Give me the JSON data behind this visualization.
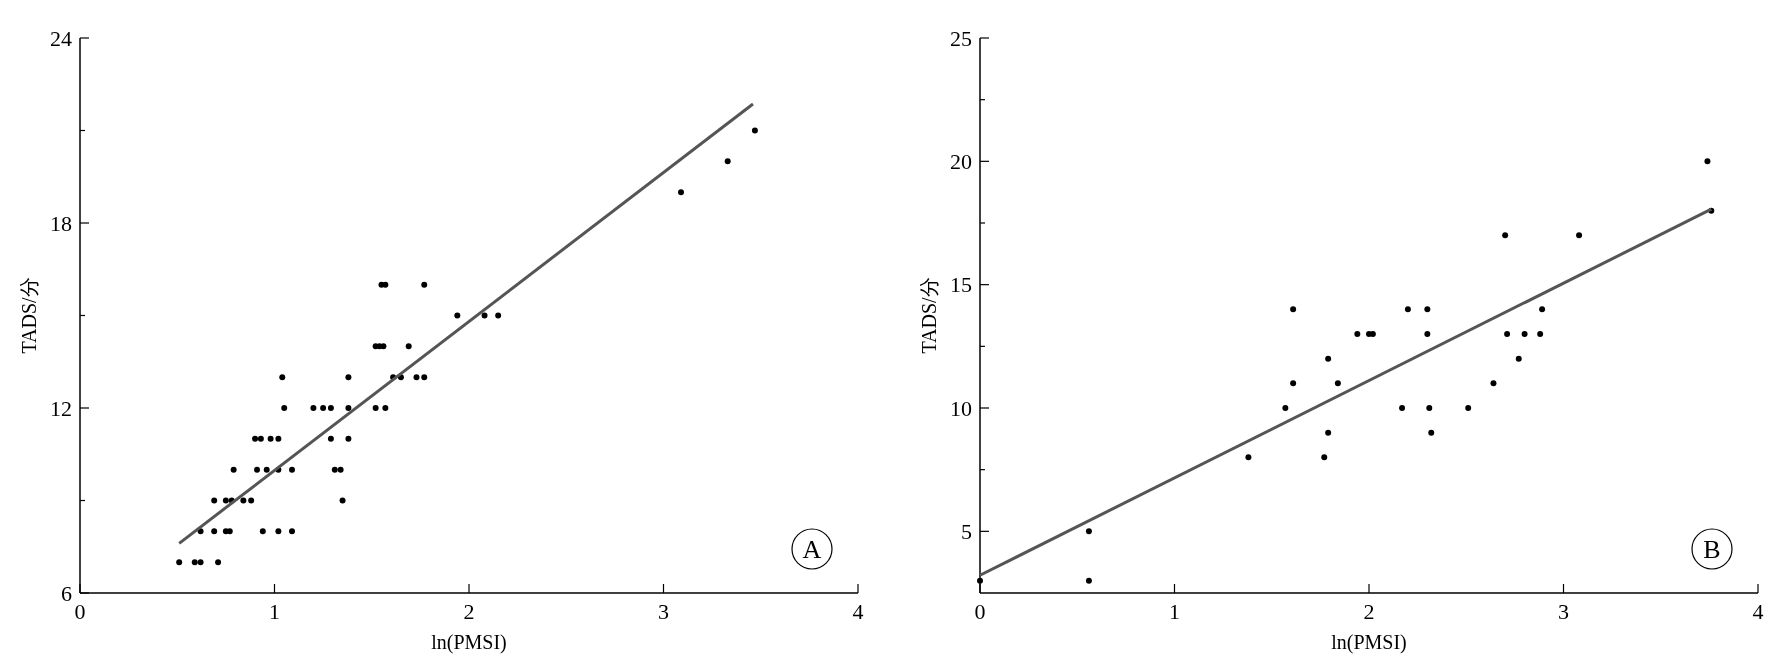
{
  "chart_data": [
    {
      "type": "scatter",
      "xlabel": "ln(PMSI)",
      "ylabel": "TADS/分",
      "xlim": [
        0,
        4
      ],
      "ylim": [
        6,
        24
      ],
      "xticks": [
        0,
        1,
        2,
        3,
        4
      ],
      "yticks": [
        6,
        {
          "value": 9,
          "label": null
        },
        12,
        {
          "value": 15,
          "label": null
        },
        18,
        {
          "value": 21,
          "label": null
        },
        24
      ],
      "annotations": [
        "A"
      ],
      "series": [
        {
          "marker": "circle",
          "color": "#000000",
          "x": [
            0.51,
            0.59,
            0.62,
            0.71,
            0.62,
            0.69,
            0.75,
            0.77,
            0.94,
            1.02,
            1.09,
            0.69,
            0.75,
            0.78,
            0.84,
            0.88,
            1.35,
            0.79,
            0.91,
            0.96,
            1.02,
            1.09,
            1.31,
            1.34,
            0.9,
            0.93,
            0.98,
            1.02,
            1.29,
            1.38,
            1.05,
            1.2,
            1.25,
            1.29,
            1.38,
            1.52,
            1.57,
            1.04,
            1.38,
            1.61,
            1.65,
            1.73,
            1.77,
            1.52,
            1.54,
            1.56,
            1.69,
            1.94,
            2.08,
            2.15,
            1.55,
            1.57,
            1.77,
            3.09,
            3.33,
            3.47
          ],
          "values": [
            7,
            7,
            7,
            7,
            8,
            8,
            8,
            8,
            8,
            8,
            8,
            9,
            9,
            9,
            9,
            9,
            9,
            10,
            10,
            10,
            10,
            10,
            10,
            10,
            11,
            11,
            11,
            11,
            11,
            11,
            12,
            12,
            12,
            12,
            12,
            12,
            12,
            13,
            13,
            13,
            13,
            13,
            13,
            14,
            14,
            14,
            14,
            15,
            15,
            15,
            16,
            16,
            16,
            19,
            20,
            21
          ]
        },
        {
          "type": "line",
          "color": "#555555",
          "x": [
            0.51,
            3.46
          ],
          "values": [
            7.61,
            21.86
          ]
        }
      ]
    },
    {
      "type": "scatter",
      "xlabel": "ln(PMSI)",
      "ylabel": "TADS/分",
      "xlim": [
        0,
        4
      ],
      "ylim": [
        2.5,
        25
      ],
      "xticks": [
        0,
        1,
        2,
        3,
        4
      ],
      "yticks": [
        5,
        {
          "value": 7.5,
          "label": null
        },
        10,
        {
          "value": 12.5,
          "label": null
        },
        15,
        {
          "value": 17.5,
          "label": null
        },
        20,
        {
          "value": 22.5,
          "label": null
        },
        25
      ],
      "annotations": [
        "B"
      ],
      "series": [
        {
          "marker": "circle",
          "color": "#000000",
          "x": [
            0,
            0.56,
            0.56,
            1.38,
            1.77,
            1.79,
            2.32,
            1.57,
            2.17,
            2.31,
            2.51,
            1.61,
            1.84,
            2.64,
            1.79,
            2.77,
            1.94,
            2.0,
            2.02,
            2.3,
            2.71,
            2.8,
            2.88,
            1.61,
            2.2,
            2.3,
            2.89,
            2.7,
            3.08,
            3.76,
            3.74
          ],
          "values": [
            3,
            5,
            3,
            8,
            8,
            9,
            9,
            10,
            10,
            10,
            10,
            11,
            11,
            11,
            12,
            12,
            13,
            13,
            13,
            13,
            13,
            13,
            13,
            14,
            14,
            14,
            14,
            17,
            17,
            18,
            20
          ]
        },
        {
          "type": "line",
          "color": "#555555",
          "x": [
            0,
            3.76
          ],
          "values": [
            3.22,
            18.06
          ]
        }
      ]
    }
  ]
}
